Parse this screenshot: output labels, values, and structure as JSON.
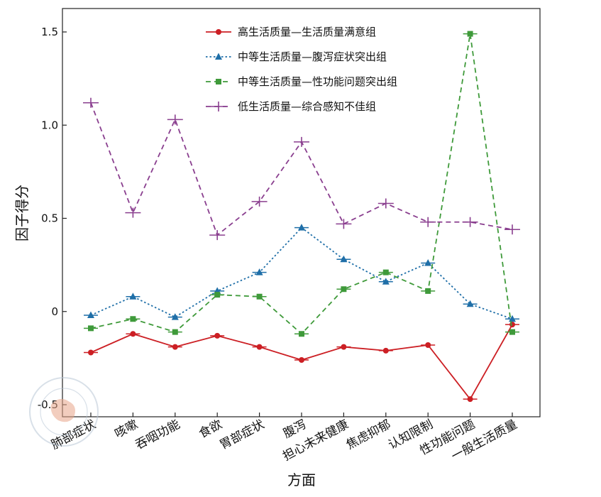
{
  "chart_data": {
    "type": "line",
    "xlabel": "方面",
    "ylabel": "因子得分",
    "ylim": [
      -0.5,
      1.5
    ],
    "yticks": [
      -0.5,
      0,
      0.5,
      1.0,
      1.5
    ],
    "ytick_labels": [
      "-0.5",
      "0",
      "0.5",
      "1.0",
      "1.5"
    ],
    "grid": false,
    "legend_position": "top-center",
    "categories": [
      "肺部症状",
      "咳嗽",
      "吞咽功能",
      "食欲",
      "胃部症状",
      "腹泻",
      "担心未来健康",
      "焦虑抑郁",
      "认知限制",
      "性功能问题",
      "一般生活质量"
    ],
    "series": [
      {
        "name": "高生活质量—生活质量满意组",
        "color": "#cc1f24",
        "line_style": "solid",
        "marker": "circle",
        "values": [
          -0.22,
          -0.12,
          -0.19,
          -0.13,
          -0.19,
          -0.26,
          -0.19,
          -0.21,
          -0.18,
          -0.47,
          -0.07
        ]
      },
      {
        "name": "中等生活质量—腹泻症状突出组",
        "color": "#1f6fa8",
        "line_style": "dotted",
        "marker": "triangle",
        "values": [
          -0.02,
          0.08,
          -0.03,
          0.11,
          0.21,
          0.45,
          0.28,
          0.16,
          0.26,
          0.04,
          -0.04
        ]
      },
      {
        "name": "中等生活质量—性功能问题突出组",
        "color": "#3f9a3a",
        "line_style": "dashed",
        "marker": "square",
        "values": [
          -0.09,
          -0.04,
          -0.11,
          0.09,
          0.08,
          -0.12,
          0.12,
          0.21,
          0.11,
          1.49,
          -0.11
        ]
      },
      {
        "name": "低生活质量—综合感知不佳组",
        "color": "#8a3f8f",
        "line_style": "dashed",
        "marker": "plus",
        "values": [
          1.12,
          0.53,
          1.03,
          0.41,
          0.59,
          0.91,
          0.47,
          0.58,
          0.48,
          0.48,
          0.44
        ]
      }
    ]
  }
}
